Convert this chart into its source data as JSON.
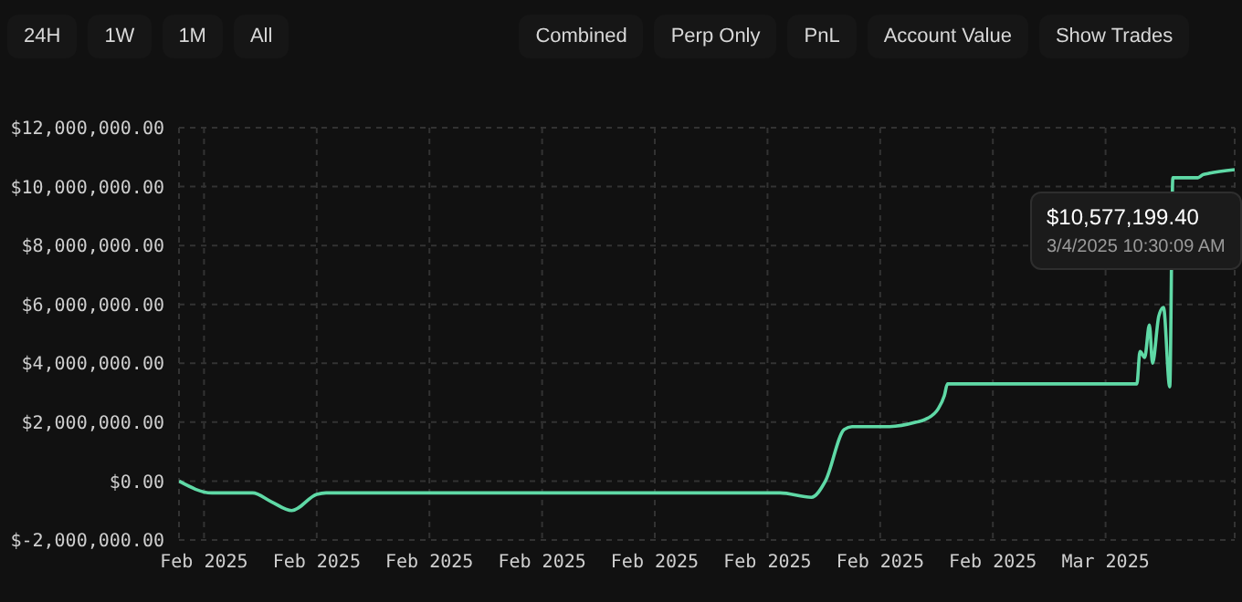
{
  "chart_data": {
    "type": "line",
    "x": [
      "2025-02-04T08:00",
      "2025-02-05T05:00",
      "2025-02-06T07:00",
      "2025-02-06T19:00",
      "2025-02-07T08:00",
      "2025-02-08T00:00",
      "2025-02-08T06:00",
      "2025-02-20T08:00",
      "2025-02-21T04:00",
      "2025-02-21T13:00",
      "2025-02-22T01:00",
      "2025-02-22T06:00",
      "2025-02-23T06:00",
      "2025-02-23T23:00",
      "2025-02-24T05:00",
      "2025-02-24T13:00",
      "2025-02-24T17:00",
      "2025-02-24T19:00",
      "2025-03-01T20:00",
      "2025-03-01T22:00",
      "2025-03-02T01:00",
      "2025-03-02T04:00",
      "2025-03-02T06:00",
      "2025-03-02T10:00",
      "2025-03-02T13:00",
      "2025-03-02T17:00",
      "2025-03-02T19:00",
      "2025-03-03T11:00",
      "2025-03-03T14:00",
      "2025-03-03T18:00",
      "2025-03-04T10:30"
    ],
    "series": [
      {
        "color": "#5fd9a6",
        "values": [
          0,
          -400000,
          -400000,
          -700000,
          -1000000,
          -450000,
          -400000,
          -400000,
          -550000,
          0,
          1750000,
          1850000,
          1850000,
          2000000,
          2100000,
          2450000,
          2900000,
          3300000,
          3300000,
          4400000,
          4200000,
          5300000,
          4000000,
          5600000,
          5900000,
          3200000,
          10300000,
          10300000,
          10400000,
          10450000,
          10577199.4
        ]
      }
    ],
    "xlim": [
      "2025-02-04T08:00",
      "2025-03-04T10:30"
    ],
    "xticks": [
      {
        "value": "2025-02-05",
        "label": "Feb 2025"
      },
      {
        "value": "2025-02-08",
        "label": "Feb 2025"
      },
      {
        "value": "2025-02-11",
        "label": "Feb 2025"
      },
      {
        "value": "2025-02-14",
        "label": "Feb 2025"
      },
      {
        "value": "2025-02-17",
        "label": "Feb 2025"
      },
      {
        "value": "2025-02-20",
        "label": "Feb 2025"
      },
      {
        "value": "2025-02-23",
        "label": "Feb 2025"
      },
      {
        "value": "2025-02-26",
        "label": "Feb 2025"
      },
      {
        "value": "2025-03-01",
        "label": "Mar 2025"
      }
    ],
    "ylim": [
      -2000000,
      12000000
    ],
    "yticks": [
      {
        "value": -2000000,
        "label": "$-2,000,000.00"
      },
      {
        "value": 0,
        "label": "$0.00"
      },
      {
        "value": 2000000,
        "label": "$2,000,000.00"
      },
      {
        "value": 4000000,
        "label": "$4,000,000.00"
      },
      {
        "value": 6000000,
        "label": "$6,000,000.00"
      },
      {
        "value": 8000000,
        "label": "$8,000,000.00"
      },
      {
        "value": 10000000,
        "label": "$10,000,000.00"
      },
      {
        "value": 12000000,
        "label": "$12,000,000.00"
      }
    ],
    "grid": true,
    "marker": "none",
    "line_style": "solid",
    "annotations": [
      "24H",
      "1W",
      "1M",
      "All",
      "Combined",
      "Perp Only",
      "PnL",
      "Account Value",
      "Show Trades",
      {
        "text": "$10,577,199.40",
        "x": "2025-03-04T10:30",
        "y": 10577199.4
      },
      "3/4/2025 10:30:09 AM"
    ]
  }
}
